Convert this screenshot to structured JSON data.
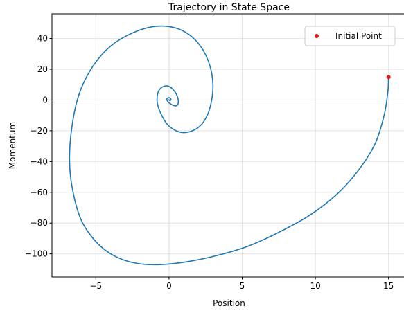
{
  "chart_data": {
    "type": "line",
    "title": "Trajectory in State Space",
    "xlabel": "Position",
    "ylabel": "Momentum",
    "xlim": [
      -8,
      16.2
    ],
    "ylim": [
      -115,
      56
    ],
    "xticks": [
      -5,
      0,
      5,
      10,
      15
    ],
    "xtick_labels": [
      "−5",
      "0",
      "5",
      "10",
      "15"
    ],
    "yticks": [
      40,
      20,
      0,
      -20,
      -40,
      -60,
      -80,
      -100
    ],
    "ytick_labels": [
      "40",
      "20",
      "0",
      "−20",
      "−40",
      "−60",
      "−80",
      "−100"
    ],
    "grid": true,
    "legend_position": "top-right",
    "series": [
      {
        "label": "",
        "color": "#1f77b4",
        "x": [
          15.0,
          14.95,
          14.7,
          14.1,
          13.0,
          11.5,
          9.6,
          7.5,
          5.4,
          3.3,
          1.3,
          -0.6,
          -2.3,
          -3.8,
          -5.0,
          -6.0,
          -6.6,
          -6.8,
          -6.6,
          -6.1,
          -5.2,
          -4.0,
          -2.4,
          -0.8,
          0.7,
          1.9,
          2.7,
          3.0,
          2.8,
          2.3,
          1.6,
          0.8,
          0.0,
          -0.5,
          -0.8,
          -0.75,
          -0.45,
          -0.05,
          0.35,
          0.6,
          0.62,
          0.45,
          0.15,
          -0.1,
          -0.15,
          0.0,
          0.12,
          0.1,
          0.03,
          0.0
        ],
        "y": [
          14.5,
          5.0,
          -10.0,
          -28.0,
          -45.0,
          -61.0,
          -75.0,
          -86.0,
          -95.0,
          -101.0,
          -105.0,
          -107.0,
          -106.0,
          -101.0,
          -92.0,
          -78.0,
          -58.0,
          -38.0,
          -15.0,
          5.0,
          22.0,
          35.0,
          44.0,
          48.0,
          46.0,
          38.0,
          25.0,
          10.0,
          -5.0,
          -15.0,
          -20.0,
          -21.0,
          -17.0,
          -10.0,
          -2.0,
          5.0,
          8.5,
          9.0,
          6.0,
          1.5,
          -2.5,
          -3.8,
          -2.8,
          -0.8,
          0.8,
          1.5,
          0.8,
          -0.3,
          -0.2,
          0.2
        ]
      }
    ],
    "points": [
      {
        "label": "Initial Point",
        "color": "#e31a1c",
        "x": 15.0,
        "y": 14.9
      }
    ]
  }
}
